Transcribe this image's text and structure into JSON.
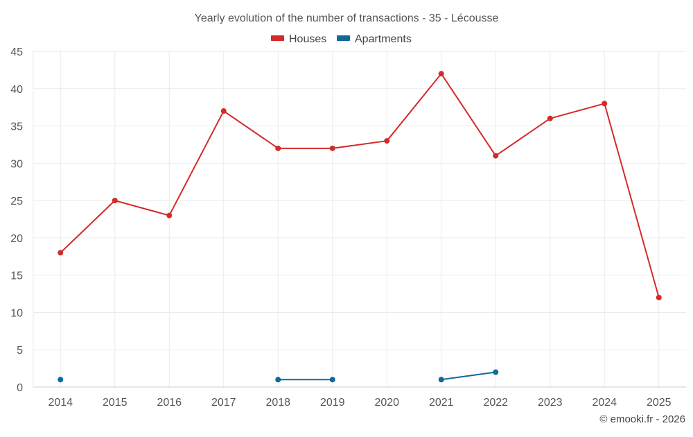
{
  "chart_data": {
    "type": "line",
    "title": "Yearly evolution of the number of transactions - 35 - Lécousse",
    "categories": [
      "2014",
      "2015",
      "2016",
      "2017",
      "2018",
      "2019",
      "2020",
      "2021",
      "2022",
      "2023",
      "2024",
      "2025"
    ],
    "series": [
      {
        "name": "Houses",
        "color": "#d32a2a",
        "values": [
          18,
          25,
          23,
          37,
          32,
          32,
          33,
          42,
          31,
          36,
          38,
          12
        ]
      },
      {
        "name": "Apartments",
        "color": "#0f6a9b",
        "values": [
          1,
          null,
          null,
          null,
          1,
          1,
          null,
          1,
          2,
          null,
          null,
          null
        ]
      }
    ],
    "ylim": [
      0,
      45
    ],
    "yticks": [
      0,
      5,
      10,
      15,
      20,
      25,
      30,
      35,
      40,
      45
    ],
    "grid": true,
    "legend_position": "top-center",
    "xlabel": "",
    "ylabel": ""
  },
  "credit": "© emooki.fr - 2026"
}
